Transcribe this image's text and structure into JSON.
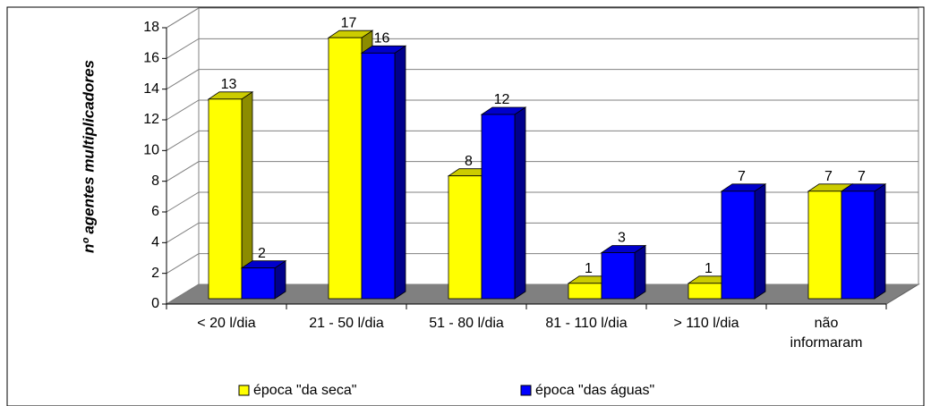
{
  "chart_data": {
    "type": "bar3d",
    "y_label": "nº agentes multiplicadores",
    "categories": [
      "< 20 l/dia",
      "21 - 50 l/dia",
      "51 - 80 l/dia",
      "81 - 110 l/dia",
      "> 110 l/dia",
      "não informaram"
    ],
    "series": [
      {
        "name": "época \"da seca\"",
        "color": "#ffff00",
        "values": [
          13,
          17,
          8,
          1,
          1,
          7
        ]
      },
      {
        "name": "época \"das águas\"",
        "color": "#0000ff",
        "values": [
          2,
          16,
          12,
          3,
          7,
          7
        ]
      }
    ],
    "ylim": [
      0,
      18
    ],
    "yticks": [
      0,
      2,
      4,
      6,
      8,
      10,
      12,
      14,
      16,
      18
    ],
    "grid": true,
    "legend": "bottom"
  }
}
